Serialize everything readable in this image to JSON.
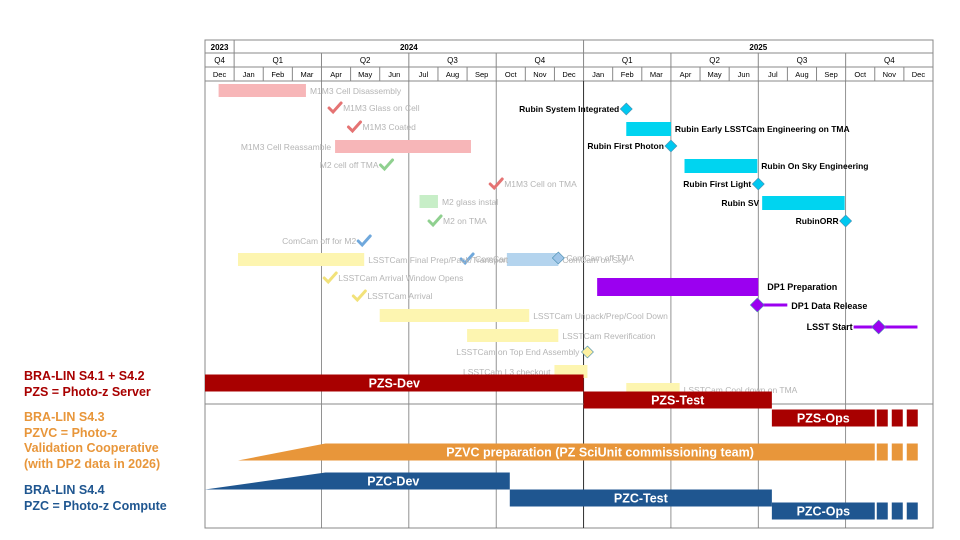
{
  "legend_blocks": [
    {
      "key": "s41",
      "color": "#a80000",
      "lines": [
        "BRA-LIN S4.1 + S4.2",
        "PZS = Photo-z Server"
      ]
    },
    {
      "key": "s43",
      "color": "#e8963a",
      "lines": [
        "BRA-LIN S4.3",
        "PZVC = Photo-z",
        "Validation Cooperative",
        "(with DP2 data in 2026)"
      ]
    },
    {
      "key": "s44",
      "color": "#1f5690",
      "lines": [
        "BRA-LIN S4.4",
        "PZC = Photo-z Compute"
      ]
    }
  ],
  "chart_data": {
    "type": "gantt",
    "timeline": {
      "years": [
        {
          "label": "2023",
          "start": "2023-12",
          "end": "2024-01"
        },
        {
          "label": "2024",
          "start": "2024-01",
          "end": "2025-01"
        },
        {
          "label": "2025",
          "start": "2025-01",
          "end": "2026-01"
        }
      ],
      "quarters": [
        {
          "label": "Q4",
          "start": "2023-12",
          "end": "2024-01"
        },
        {
          "label": "Q1",
          "start": "2024-01",
          "end": "2024-04"
        },
        {
          "label": "Q2",
          "start": "2024-04",
          "end": "2024-07"
        },
        {
          "label": "Q3",
          "start": "2024-07",
          "end": "2024-10"
        },
        {
          "label": "Q4",
          "start": "2024-10",
          "end": "2025-01"
        },
        {
          "label": "Q1",
          "start": "2025-01",
          "end": "2025-04"
        },
        {
          "label": "Q2",
          "start": "2025-04",
          "end": "2025-07"
        },
        {
          "label": "Q3",
          "start": "2025-07",
          "end": "2025-10"
        },
        {
          "label": "Q4",
          "start": "2025-10",
          "end": "2026-01"
        }
      ],
      "months": [
        "Dec",
        "Jan",
        "Feb",
        "Mar",
        "Apr",
        "May",
        "Jun",
        "Jul",
        "Aug",
        "Sep",
        "Oct",
        "Nov",
        "Dec",
        "Jan",
        "Feb",
        "Mar",
        "Apr",
        "May",
        "Jun",
        "Jul",
        "Aug",
        "Sep",
        "Oct",
        "Nov",
        "Dec"
      ],
      "first_month": "2023-12",
      "quarter_gridline_months": [
        "2024-04",
        "2024-07",
        "2024-10",
        "2025-01",
        "2025-04",
        "2025-07",
        "2025-10"
      ]
    },
    "faded_tasks": [
      {
        "label": "M1M3 Cell Disassembly",
        "start": "2023-12-15",
        "end": "2024-03-15",
        "color": "#f7b6b8",
        "label_side": "right"
      },
      {
        "label": "M1M3 Glass on Cell",
        "date": "2024-04-15",
        "marker": "check",
        "color": "#e57373",
        "label_side": "right"
      },
      {
        "label": "M1M3 Coated",
        "date": "2024-05-05",
        "marker": "check",
        "color": "#e57373",
        "label_side": "right"
      },
      {
        "label": "M1M3 Cell Reassamble",
        "start": "2024-04-15",
        "end": "2024-09-05",
        "color": "#f7b6b8",
        "label_side": "left"
      },
      {
        "label": "M2 cell off TMA",
        "date": "2024-06-08",
        "marker": "check",
        "color": "#8fd08f",
        "label_side": "left"
      },
      {
        "label": "M1M3 Cell on TMA",
        "date": "2024-10-01",
        "marker": "check",
        "color": "#e57373",
        "label_side": "right"
      },
      {
        "label": "M2 glass instal",
        "start": "2024-07-12",
        "end": "2024-08-01",
        "color": "#c7eec7",
        "label_side": "right"
      },
      {
        "label": "M2 on TMA",
        "date": "2024-07-28",
        "marker": "check",
        "color": "#8fd08f",
        "label_side": "right"
      },
      {
        "label": "ComCam off for M2",
        "date": "2024-05-15",
        "marker": "check",
        "color": "#6fa8dc",
        "label_side": "left"
      },
      {
        "label": "ComCam on after M2",
        "date": "2024-09-01",
        "marker": "check",
        "color": "#6fa8dc",
        "label_side": "right"
      },
      {
        "label": "ComCam on Sky",
        "start": "2024-10-12",
        "end": "2024-12-05",
        "color": "#b4d4ee",
        "label_side": "right"
      },
      {
        "label": "ComCam off TMA",
        "date": "2024-12-05",
        "marker": "diamond",
        "color": "#9fc5e8",
        "label_side": "right"
      },
      {
        "label": "LSSTCam Final Prep/Pack/Transport",
        "start": "2024-01-05",
        "end": "2024-05-15",
        "color": "#fdf5b0",
        "label_side": "right"
      },
      {
        "label": "LSSTCam Arrival Window Opens",
        "date": "2024-04-10",
        "marker": "check",
        "color": "#f2e27a",
        "label_side": "right"
      },
      {
        "label": "LSSTCam Arrival",
        "date": "2024-05-10",
        "marker": "check",
        "color": "#f2e27a",
        "label_side": "right"
      },
      {
        "label": "LSSTCam Unpack/Prep/Cool Down",
        "start": "2024-06-01",
        "end": "2024-11-05",
        "color": "#fdf5b0",
        "label_side": "right"
      },
      {
        "label": "LSSTCam Reverification",
        "start": "2024-09-01",
        "end": "2024-12-05",
        "color": "#fdf5b0",
        "label_side": "right"
      },
      {
        "label": "LSSTCam on Top End Assembly",
        "date": "2025-01-05",
        "marker": "diamond",
        "color": "#fdf0a0",
        "label_side": "left"
      },
      {
        "label": "LSSTCam L3 checkout",
        "start": "2024-12-01",
        "end": "2025-01-05",
        "color": "#fdf5b0",
        "label_side": "left"
      },
      {
        "label": "LSSTCam Cool down on TMA",
        "start": "2025-02-15",
        "end": "2025-04-10",
        "color": "#fdf5b0",
        "label_side": "right"
      }
    ],
    "rubin_tasks": [
      {
        "label": "Rubin System Integrated",
        "date": "2025-02-15",
        "marker": "diamond",
        "label_side": "left"
      },
      {
        "label": "Rubin Early LSSTCam Engineering on TMA",
        "start": "2025-02-15",
        "end": "2025-04-01",
        "label_side": "right"
      },
      {
        "label": "Rubin First Photon",
        "date": "2025-04-01",
        "marker": "diamond",
        "label_side": "left"
      },
      {
        "label": "Rubin On Sky Engineering",
        "start": "2025-04-15",
        "end": "2025-06-30",
        "label_side": "right"
      },
      {
        "label": "Rubin First Light",
        "date": "2025-07-01",
        "marker": "diamond",
        "label_side": "left"
      },
      {
        "label": "Rubin SV",
        "start": "2025-07-05",
        "end": "2025-09-30",
        "label_side": "left"
      },
      {
        "label": "RubinORR",
        "date": "2025-10-01",
        "marker": "diamond",
        "label_side": "left"
      }
    ],
    "dp_tasks": [
      {
        "label": "DP1 Preparation",
        "start": "2025-01-15",
        "end": "2025-07-01",
        "label_side": "right"
      },
      {
        "label": "DP1 Data Release",
        "date": "2025-06-30",
        "marker": "diamond",
        "label_side": "right"
      },
      {
        "label": "LSST Start",
        "date": "2025-11-05",
        "marker": "diamond",
        "line_end": "2025-12-15",
        "label_side": "left"
      }
    ],
    "lanes": [
      {
        "label": "PZS-Dev",
        "start": "2023-12-01",
        "end": "2025-01-01",
        "color": "#a80000",
        "shape": "bar"
      },
      {
        "label": "PZS-Test",
        "start": "2025-01-01",
        "end": "2025-07-15",
        "color": "#a80000",
        "shape": "bar"
      },
      {
        "label": "PZS-Ops",
        "start": "2025-07-15",
        "end": "2025-11-01",
        "color": "#a80000",
        "shape": "bar",
        "continues": true
      },
      {
        "label": "PZVC preparation (PZ SciUnit commissioning team)",
        "start": "2024-04-05",
        "end": "2025-11-01",
        "ramp_start": "2024-01-05",
        "color": "#e8963a",
        "shape": "ramp",
        "continues": true
      },
      {
        "label": "PZC-Dev",
        "start": "2024-04-05",
        "end": "2024-10-15",
        "ramp_start": "2023-12-01",
        "color": "#1f5690",
        "shape": "ramp"
      },
      {
        "label": "PZC-Test",
        "start": "2024-10-15",
        "end": "2025-07-15",
        "color": "#1f5690",
        "shape": "bar"
      },
      {
        "label": "PZC-Ops",
        "start": "2025-07-15",
        "end": "2025-11-01",
        "color": "#1f5690",
        "shape": "bar",
        "continues": true
      }
    ]
  }
}
